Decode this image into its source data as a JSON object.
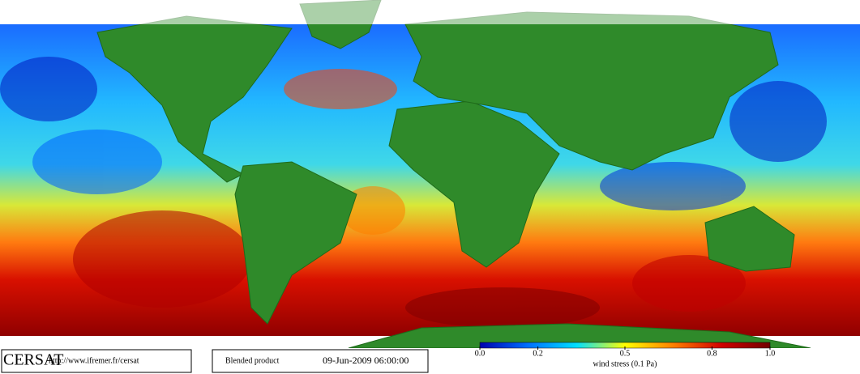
{
  "logo": "CERSAT",
  "url": "http://www.ifremer.fr/cersat",
  "product": "Blended product",
  "timestamp": "09-Jun-2009 06:00:00",
  "colorbar": {
    "label": "wind stress (0.1 Pa)",
    "lim": [
      0,
      1
    ],
    "ticks": [
      {
        "value": 0,
        "label": "0.0"
      },
      0.2,
      0.5,
      0.8,
      {
        "value": 1,
        "label": "1.0"
      }
    ],
    "colors": [
      "#0000b0",
      "#0070ff",
      "#00e0ff",
      "#ffff00",
      "#ff8000",
      "#d00000",
      "#700000"
    ]
  }
}
